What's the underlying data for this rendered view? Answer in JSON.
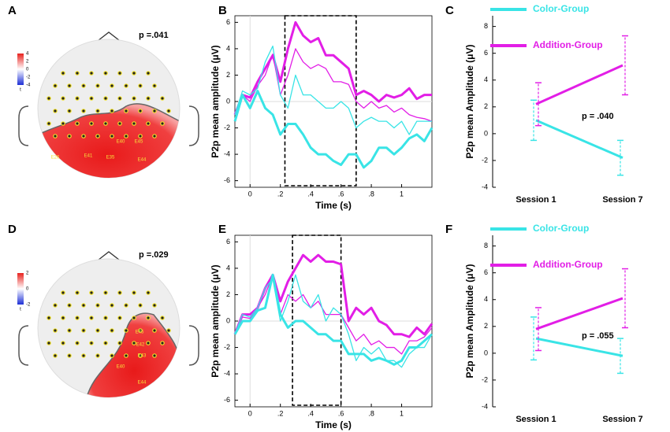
{
  "topomaps": [
    {
      "panel": "A",
      "p_label": "p =.041",
      "colorbar_ticks": [
        4,
        2,
        0,
        -2,
        -4
      ],
      "colorbar_unit": "t",
      "electrode_labels": [
        "E26",
        "E41",
        "E35",
        "E40",
        "E45",
        "E44"
      ]
    },
    {
      "panel": "D",
      "p_label": "p =.029",
      "colorbar_ticks": [
        2,
        0,
        -2
      ],
      "colorbar_unit": "t",
      "electrode_labels": [
        "E45",
        "E42",
        "E43",
        "E40",
        "E44"
      ]
    }
  ],
  "chart_data": [
    {
      "type": "line",
      "panel": "B",
      "xlabel": "Time (s)",
      "ylabel": "P2p mean amplitude  (μV)",
      "xlim": [
        -0.1,
        1.2
      ],
      "ylim": [
        -6.5,
        6.5
      ],
      "xticks": [
        0,
        {
          "value": 0.2,
          "label": ".2"
        },
        {
          "value": 0.4,
          "label": ".4"
        },
        {
          "value": 0.6,
          "label": ".6"
        },
        {
          "value": 0.8,
          "label": ".8"
        },
        1
      ],
      "yticks": [
        6,
        4,
        2,
        0,
        -2,
        -4,
        -6
      ],
      "window": [
        0.23,
        0.7
      ],
      "x": [
        -0.1,
        -0.05,
        0,
        0.05,
        0.1,
        0.15,
        0.2,
        0.25,
        0.3,
        0.35,
        0.4,
        0.45,
        0.5,
        0.55,
        0.6,
        0.65,
        0.7,
        0.75,
        0.8,
        0.85,
        0.9,
        0.95,
        1.0,
        1.05,
        1.1,
        1.15,
        1.2
      ],
      "series": [
        {
          "color": "#e21ee6",
          "width": 3,
          "values": [
            -1,
            0.5,
            0.3,
            1.5,
            2.5,
            3.5,
            1.5,
            4,
            6,
            5,
            4.5,
            4.8,
            3.5,
            3.5,
            3,
            2.5,
            0.5,
            0.8,
            0.5,
            0,
            0.5,
            0.3,
            0.5,
            1,
            0.2,
            0.5,
            0.5
          ]
        },
        {
          "color": "#e21ee6",
          "width": 1.3,
          "values": [
            -1,
            0.5,
            0,
            1.2,
            2,
            3.6,
            0.5,
            2,
            4,
            3,
            2.5,
            2.8,
            2.5,
            1.5,
            1.5,
            1.3,
            0,
            -0.5,
            0,
            -0.5,
            -0.3,
            -0.8,
            -0.5,
            -1,
            -1.2,
            -1.3,
            -1.5
          ]
        },
        {
          "color": "#39e4e6",
          "width": 1.3,
          "values": [
            -1,
            0.8,
            0.5,
            1,
            3,
            4.2,
            0.5,
            -0.5,
            2,
            0.5,
            0.5,
            0,
            -0.5,
            -0.5,
            0,
            -0.5,
            -2,
            -1.5,
            -1.2,
            -1.5,
            -1.5,
            -2,
            -1.5,
            -2.5,
            -1.5,
            -1.5,
            -1.5
          ]
        },
        {
          "color": "#39e4e6",
          "width": 3,
          "values": [
            -1.5,
            0.5,
            -0.5,
            0.8,
            -0.5,
            -1,
            -2.5,
            -1.7,
            -1.7,
            -2.5,
            -3.5,
            -4,
            -4,
            -4.5,
            -4.8,
            -4,
            -4,
            -5,
            -4.5,
            -3.5,
            -3.5,
            -4,
            -3.5,
            -2.8,
            -2.5,
            -3,
            -2
          ]
        }
      ]
    },
    {
      "type": "line",
      "panel": "C",
      "ylabel": "P2p mean Amplitude  (μV)",
      "annotation": "p = .040",
      "categories": [
        "Session 1",
        "Session 7"
      ],
      "ylim": [
        -4,
        8.8
      ],
      "yticks": [
        -4,
        -2,
        0,
        2,
        4,
        6,
        8
      ],
      "series": [
        {
          "name": "Color-Group",
          "color": "#39e4e6",
          "width": 3,
          "values": [
            1,
            -1.8
          ],
          "errors": [
            1.5,
            1.3
          ]
        },
        {
          "name": "Addition-Group",
          "color": "#e21ee6",
          "width": 3,
          "values": [
            2.2,
            5.1
          ],
          "errors": [
            1.6,
            2.2
          ]
        }
      ]
    },
    {
      "type": "line",
      "panel": "E",
      "xlabel": "Time (s)",
      "ylabel": "P2p mean amplitude  (μV)",
      "xlim": [
        -0.1,
        1.2
      ],
      "ylim": [
        -6.5,
        6.5
      ],
      "xticks": [
        0,
        {
          "value": 0.2,
          "label": ".2"
        },
        {
          "value": 0.4,
          "label": ".4"
        },
        {
          "value": 0.6,
          "label": ".6"
        },
        {
          "value": 0.8,
          "label": ".8"
        },
        1
      ],
      "yticks": [
        6,
        4,
        2,
        0,
        -2,
        -4,
        -6
      ],
      "window": [
        0.28,
        0.6
      ],
      "x": [
        -0.1,
        -0.05,
        0,
        0.05,
        0.1,
        0.15,
        0.2,
        0.25,
        0.3,
        0.35,
        0.4,
        0.45,
        0.5,
        0.55,
        0.6,
        0.65,
        0.7,
        0.75,
        0.8,
        0.85,
        0.9,
        0.95,
        1.0,
        1.05,
        1.1,
        1.15,
        1.2
      ],
      "series": [
        {
          "color": "#e21ee6",
          "width": 3,
          "values": [
            -1,
            0.5,
            0.5,
            1,
            2.5,
            3.5,
            1.5,
            3,
            4,
            5,
            4.5,
            5,
            4.5,
            4.5,
            4.3,
            0,
            1,
            0.5,
            1,
            0,
            -0.3,
            -1,
            -1,
            -1.2,
            -0.5,
            -1,
            -0.2
          ]
        },
        {
          "color": "#e21ee6",
          "width": 1.3,
          "values": [
            -1,
            0.3,
            0.2,
            1,
            2,
            3.5,
            0.5,
            2,
            1.5,
            2,
            1,
            1.5,
            0.5,
            0.5,
            0.5,
            -0.5,
            -1.5,
            -1,
            -1.8,
            -1.5,
            -2,
            -2,
            -2.5,
            -1.5,
            -1.5,
            -1.2,
            -0.5
          ]
        },
        {
          "color": "#39e4e6",
          "width": 1.3,
          "values": [
            -1,
            0.5,
            0.3,
            1,
            2.5,
            3.2,
            0,
            1.5,
            3.5,
            1.5,
            1,
            2,
            0,
            1,
            0.5,
            -1,
            -3,
            -2,
            -2.5,
            -2,
            -3,
            -3,
            -3.5,
            -2.5,
            -2,
            -2,
            -1
          ]
        },
        {
          "color": "#39e4e6",
          "width": 3,
          "values": [
            -1,
            0,
            0,
            0.8,
            1,
            3.5,
            0.5,
            -0.5,
            0,
            0,
            -0.5,
            -1,
            -1,
            -1.5,
            -1.5,
            -2.5,
            -2.5,
            -2.5,
            -3,
            -2.8,
            -3,
            -3.3,
            -3,
            -2,
            -2,
            -1.5,
            -1
          ]
        }
      ]
    },
    {
      "type": "line",
      "panel": "F",
      "ylabel": "P2p mean Amplitude  (μV)",
      "annotation": "p = .055",
      "categories": [
        "Session 1",
        "Session 7"
      ],
      "ylim": [
        -4,
        8.8
      ],
      "yticks": [
        -4,
        -2,
        0,
        2,
        4,
        6,
        8
      ],
      "series": [
        {
          "name": "Color-Group",
          "color": "#39e4e6",
          "width": 3,
          "values": [
            1.1,
            -0.2
          ],
          "errors": [
            1.6,
            1.3
          ]
        },
        {
          "name": "Addition-Group",
          "color": "#e21ee6",
          "width": 3,
          "values": [
            1.8,
            4.1
          ],
          "errors": [
            1.6,
            2.2
          ]
        }
      ]
    }
  ]
}
